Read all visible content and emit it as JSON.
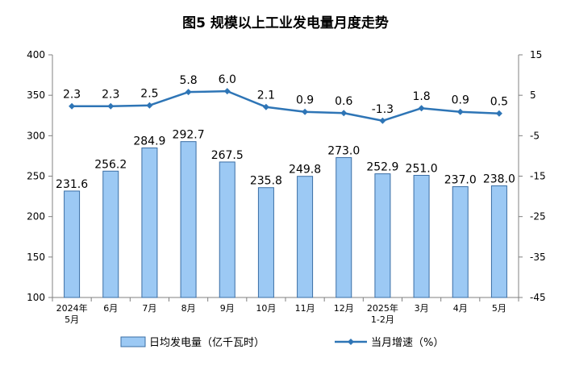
{
  "chart_data": {
    "type": "bar",
    "title": "图5  规模以上工业发电量月度走势",
    "categories": [
      [
        "2024年",
        "5月"
      ],
      [
        "6月"
      ],
      [
        "7月"
      ],
      [
        "8月"
      ],
      [
        "9月"
      ],
      [
        "10月"
      ],
      [
        "11月"
      ],
      [
        "12月"
      ],
      [
        "2025年",
        "1-2月"
      ],
      [
        "3月"
      ],
      [
        "4月"
      ],
      [
        "5月"
      ]
    ],
    "series": [
      {
        "name": "日均发电量（亿千瓦时）",
        "type": "bar",
        "axis": "left",
        "color": "#9CC9F4",
        "stroke": "#3A6EA5",
        "values": [
          231.6,
          256.2,
          284.9,
          292.7,
          267.5,
          235.8,
          249.8,
          273.0,
          252.9,
          251.0,
          237.0,
          238.0
        ],
        "labels": [
          "231.6",
          "256.2",
          "284.9",
          "292.7",
          "267.5",
          "235.8",
          "249.8",
          "273.0",
          "252.9",
          "251.0",
          "237.0",
          "238.0"
        ]
      },
      {
        "name": "当月增速（%）",
        "type": "line",
        "axis": "right",
        "color": "#2E75B6",
        "values": [
          2.3,
          2.3,
          2.5,
          5.8,
          6.0,
          2.1,
          0.9,
          0.6,
          -1.3,
          1.8,
          0.9,
          0.5
        ],
        "labels": [
          "2.3",
          "2.3",
          "2.5",
          "5.8",
          "6.0",
          "2.1",
          "0.9",
          "0.6",
          "-1.3",
          "1.8",
          "0.9",
          "0.5"
        ]
      }
    ],
    "y_left": {
      "range": [
        100,
        400
      ],
      "ticks": [
        100,
        150,
        200,
        250,
        300,
        350,
        400
      ]
    },
    "y_right": {
      "range": [
        -45,
        15
      ],
      "ticks": [
        -45,
        -35,
        -25,
        -15,
        -5,
        5,
        15
      ]
    },
    "grid": false,
    "legend_position": "bottom"
  }
}
